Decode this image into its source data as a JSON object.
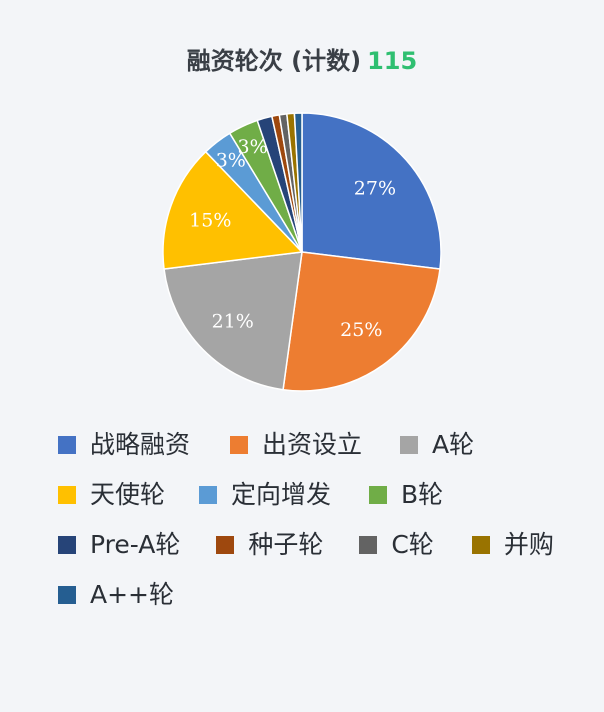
{
  "title": {
    "text": "融资轮次 (计数)",
    "total": "115"
  },
  "chart_data": {
    "type": "pie",
    "total": 115,
    "categories": [
      "战略融资",
      "出资设立",
      "A轮",
      "天使轮",
      "定向增发",
      "B轮",
      "Pre-A轮",
      "种子轮",
      "C轮",
      "并购",
      "A++轮"
    ],
    "values": [
      31,
      29,
      24,
      17,
      4,
      4,
      2,
      1,
      1,
      1,
      1
    ],
    "percent_labels": [
      "27%",
      "25%",
      "21%",
      "15%",
      "3%",
      "3%",
      "",
      "",
      "",
      "",
      ""
    ],
    "colors": [
      "#4472c4",
      "#ed7d31",
      "#a5a5a5",
      "#ffc000",
      "#5b9bd5",
      "#70ad47",
      "#264478",
      "#9e480e",
      "#636363",
      "#997300",
      "#255e91"
    ],
    "legend_position": "bottom"
  },
  "legend": {
    "rows": [
      [
        0,
        1,
        2
      ],
      [
        3,
        4,
        5
      ],
      [
        6,
        7,
        8,
        9
      ],
      [
        10
      ]
    ]
  }
}
